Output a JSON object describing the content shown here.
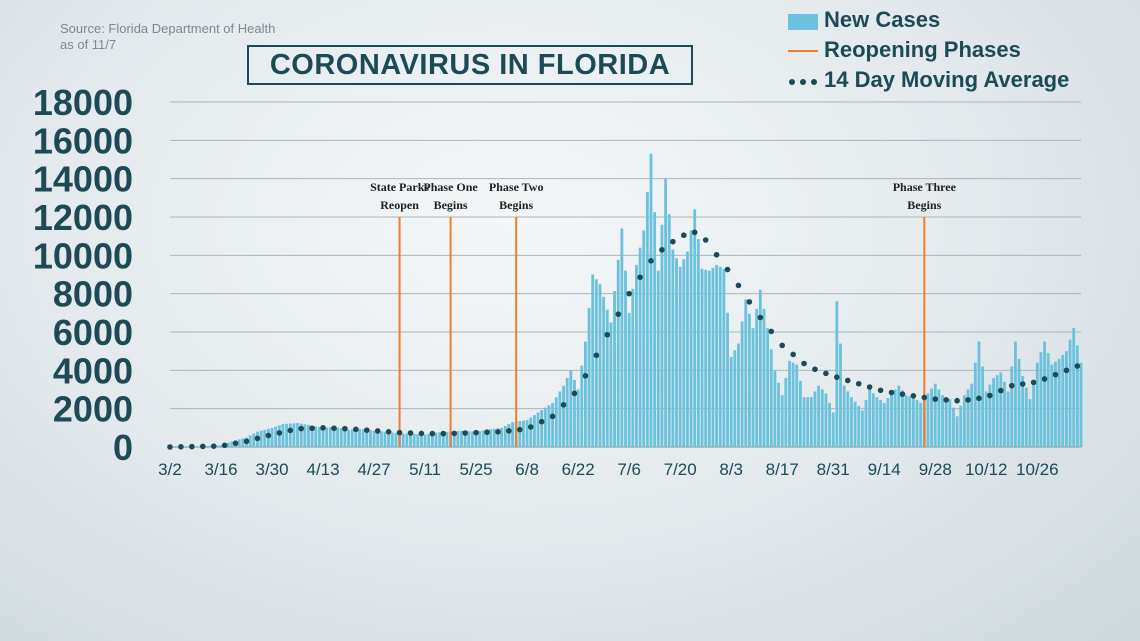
{
  "source": {
    "line1": "Source: Florida Department of Health",
    "line2": "as of 11/7"
  },
  "title": "CORONAVIRUS IN FLORIDA",
  "legend": [
    {
      "label": "New Cases",
      "symbol": "bar",
      "color": "#6cc2dc"
    },
    {
      "label": "Reopening Phases",
      "symbol": "line",
      "color": "#f07d2c"
    },
    {
      "label": "14 Day Moving Average",
      "symbol": "dots",
      "color": "#1d4a55"
    }
  ],
  "chart_data": {
    "type": "bar",
    "title": "CORONAVIRUS IN FLORIDA",
    "ylim": [
      0,
      18000
    ],
    "yticks": [
      "0",
      "2000",
      "4000",
      "6000",
      "8000",
      "10000",
      "12000",
      "14000",
      "16000",
      "18000"
    ],
    "xticks": [
      "3/2",
      "3/16",
      "3/30",
      "4/13",
      "4/27",
      "5/11",
      "5/25",
      "6/8",
      "6/22",
      "7/6",
      "7/20",
      "8/3",
      "8/17",
      "8/31",
      "9/14",
      "9/28",
      "10/12",
      "10/26"
    ],
    "grid": true,
    "legend_position": "top-right",
    "series": [
      {
        "name": "New Cases",
        "type": "bar",
        "color": "#6cc2dc",
        "points": [
          [
            "3/2",
            0
          ],
          [
            "3/9",
            20
          ],
          [
            "3/16",
            100
          ],
          [
            "3/20",
            350
          ],
          [
            "3/23",
            500
          ],
          [
            "3/26",
            800
          ],
          [
            "3/30",
            1000
          ],
          [
            "4/2",
            1200
          ],
          [
            "4/6",
            1250
          ],
          [
            "4/9",
            1150
          ],
          [
            "4/13",
            1000
          ],
          [
            "4/16",
            1050
          ],
          [
            "4/20",
            900
          ],
          [
            "4/23",
            950
          ],
          [
            "4/27",
            850
          ],
          [
            "4/30",
            800
          ],
          [
            "5/4",
            700
          ],
          [
            "5/7",
            700
          ],
          [
            "5/11",
            650
          ],
          [
            "5/14",
            750
          ],
          [
            "5/18",
            800
          ],
          [
            "5/21",
            850
          ],
          [
            "5/25",
            800
          ],
          [
            "5/28",
            900
          ],
          [
            "6/1",
            1000
          ],
          [
            "6/4",
            1300
          ],
          [
            "6/8",
            1400
          ],
          [
            "6/11",
            1800
          ],
          [
            "6/15",
            2300
          ],
          [
            "6/18",
            3200
          ],
          [
            "6/20",
            4000
          ],
          [
            "6/22",
            3000
          ],
          [
            "6/24",
            5500
          ],
          [
            "6/26",
            9000
          ],
          [
            "6/28",
            8500
          ],
          [
            "7/1",
            6500
          ],
          [
            "7/4",
            11400
          ],
          [
            "7/6",
            7000
          ],
          [
            "7/8",
            9500
          ],
          [
            "7/10",
            11300
          ],
          [
            "7/12",
            15300
          ],
          [
            "7/14",
            9200
          ],
          [
            "7/16",
            14000
          ],
          [
            "7/18",
            10300
          ],
          [
            "7/20",
            9400
          ],
          [
            "7/22",
            10200
          ],
          [
            "7/24",
            12400
          ],
          [
            "7/26",
            9300
          ],
          [
            "7/28",
            9200
          ],
          [
            "7/30",
            9500
          ],
          [
            "8/1",
            9300
          ],
          [
            "8/3",
            4700
          ],
          [
            "8/5",
            5400
          ],
          [
            "8/7",
            7700
          ],
          [
            "8/9",
            6200
          ],
          [
            "8/11",
            8200
          ],
          [
            "8/13",
            6200
          ],
          [
            "8/15",
            4000
          ],
          [
            "8/17",
            2700
          ],
          [
            "8/19",
            4500
          ],
          [
            "8/21",
            4300
          ],
          [
            "8/23",
            2600
          ],
          [
            "8/25",
            2600
          ],
          [
            "8/27",
            3200
          ],
          [
            "8/29",
            2800
          ],
          [
            "8/31",
            1800
          ],
          [
            "9/1",
            7600
          ],
          [
            "9/3",
            3200
          ],
          [
            "9/5",
            2600
          ],
          [
            "9/8",
            1900
          ],
          [
            "9/10",
            3000
          ],
          [
            "9/12",
            2600
          ],
          [
            "9/14",
            2300
          ],
          [
            "9/16",
            2800
          ],
          [
            "9/18",
            3200
          ],
          [
            "9/20",
            2700
          ],
          [
            "9/22",
            2600
          ],
          [
            "9/24",
            2300
          ],
          [
            "9/26",
            2800
          ],
          [
            "9/28",
            3300
          ],
          [
            "9/30",
            2700
          ],
          [
            "10/2",
            2500
          ],
          [
            "10/4",
            1600
          ],
          [
            "10/6",
            2700
          ],
          [
            "10/8",
            3300
          ],
          [
            "10/10",
            5500
          ],
          [
            "10/12",
            2900
          ],
          [
            "10/14",
            3600
          ],
          [
            "10/16",
            3900
          ],
          [
            "10/18",
            2900
          ],
          [
            "10/20",
            5500
          ],
          [
            "10/22",
            3700
          ],
          [
            "10/24",
            2500
          ],
          [
            "10/26",
            4400
          ],
          [
            "10/28",
            5500
          ],
          [
            "10/30",
            4300
          ],
          [
            "11/1",
            4600
          ],
          [
            "11/3",
            5000
          ],
          [
            "11/5",
            6200
          ],
          [
            "11/7",
            4400
          ]
        ]
      },
      {
        "name": "14 Day Moving Average",
        "type": "line-dotted",
        "color": "#1d4a55",
        "points": [
          [
            "3/2",
            0
          ],
          [
            "3/16",
            50
          ],
          [
            "3/23",
            300
          ],
          [
            "3/30",
            650
          ],
          [
            "4/6",
            950
          ],
          [
            "4/13",
            1000
          ],
          [
            "4/20",
            950
          ],
          [
            "4/27",
            850
          ],
          [
            "5/4",
            750
          ],
          [
            "5/11",
            700
          ],
          [
            "5/18",
            700
          ],
          [
            "5/25",
            750
          ],
          [
            "6/1",
            800
          ],
          [
            "6/8",
            950
          ],
          [
            "6/15",
            1600
          ],
          [
            "6/22",
            3000
          ],
          [
            "6/29",
            5500
          ],
          [
            "7/6",
            8000
          ],
          [
            "7/13",
            10000
          ],
          [
            "7/20",
            11000
          ],
          [
            "7/24",
            11200
          ],
          [
            "7/27",
            10800
          ],
          [
            "8/3",
            9000
          ],
          [
            "8/10",
            7000
          ],
          [
            "8/17",
            5300
          ],
          [
            "8/24",
            4200
          ],
          [
            "8/31",
            3700
          ],
          [
            "9/7",
            3300
          ],
          [
            "9/14",
            2900
          ],
          [
            "9/21",
            2700
          ],
          [
            "9/28",
            2500
          ],
          [
            "10/5",
            2400
          ],
          [
            "10/12",
            2600
          ],
          [
            "10/19",
            3200
          ],
          [
            "10/26",
            3400
          ],
          [
            "11/7",
            4300
          ]
        ]
      }
    ],
    "annotations": [
      {
        "date": "5/4",
        "lines": [
          "State Parks",
          "Reopen"
        ],
        "y_top": 12000
      },
      {
        "date": "5/18",
        "lines": [
          "Phase One",
          "Begins"
        ],
        "y_top": 12000
      },
      {
        "date": "6/5",
        "lines": [
          "Phase Two",
          "Begins"
        ],
        "y_top": 12000
      },
      {
        "date": "9/25",
        "lines": [
          "Phase Three",
          "Begins"
        ],
        "y_top": 12000
      }
    ]
  }
}
